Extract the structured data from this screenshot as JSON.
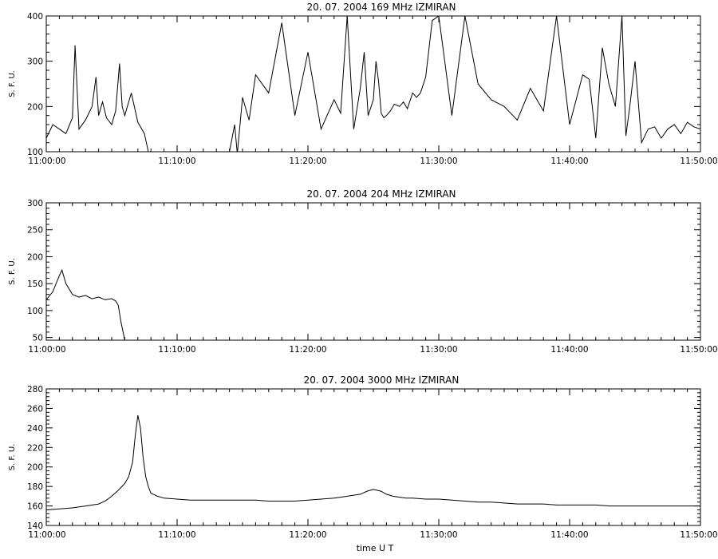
{
  "figure": {
    "xlabel": "time  U T",
    "colors": {
      "line": "#000000",
      "axes": "#000000",
      "background": "#ffffff"
    }
  },
  "chart_data": [
    {
      "type": "line",
      "title": "20.  07.  2004    169 MHz    IZMIRAN",
      "ylabel": "S. F. U.",
      "x_ticks": [
        "11:00:00",
        "11:10:00",
        "11:20:00",
        "11:30:00",
        "11:40:00",
        "11:50:00"
      ],
      "y_ticks": [
        "100",
        "200",
        "300",
        "400"
      ],
      "xlim": [
        "11:00:00",
        "11:50:00"
      ],
      "ylim": [
        100,
        400
      ],
      "grid": false,
      "series": [
        {
          "x_minutes_after_11": [
            0,
            0.5,
            1,
            1.5,
            2,
            2.2,
            2.5,
            3,
            3.5,
            3.8,
            4,
            4.3,
            4.6,
            5,
            5.3,
            5.6,
            5.8,
            6,
            6.5,
            7,
            7.5,
            7.8,
            8,
            8.3,
            8.6,
            9,
            9.2,
            9.5,
            9.8,
            10,
            10.2,
            10.5,
            10.8,
            11,
            11.3,
            11.6,
            12,
            12.2,
            12.5,
            12.8,
            13,
            13.3,
            13.6,
            14,
            14.4,
            14.6,
            15,
            15.5,
            16,
            17,
            18,
            19,
            20,
            21,
            22,
            22.5,
            23,
            23.5,
            24,
            24.3,
            24.6,
            25,
            25.2,
            25.4,
            25.6,
            25.8,
            26,
            26.3,
            26.6,
            27,
            27.3,
            27.6,
            28,
            28.3,
            28.6,
            29,
            29.5,
            30,
            31,
            32,
            33,
            34,
            35,
            36,
            37,
            38,
            39,
            40,
            41,
            41.5,
            42,
            42.5,
            43,
            43.5,
            44,
            44.3,
            44.6,
            45,
            45.5,
            46,
            46.5,
            47,
            47.5,
            48,
            48.5,
            49,
            49.5,
            50
          ],
          "y": [
            130,
            160,
            150,
            140,
            175,
            335,
            150,
            170,
            200,
            265,
            180,
            210,
            175,
            160,
            190,
            295,
            200,
            180,
            230,
            165,
            140,
            100,
            100,
            100,
            100,
            100,
            100,
            100,
            100,
            100,
            100,
            100,
            100,
            100,
            100,
            100,
            100,
            100,
            100,
            100,
            100,
            100,
            100,
            100,
            160,
            95,
            220,
            170,
            270,
            230,
            385,
            180,
            320,
            150,
            215,
            185,
            400,
            150,
            240,
            320,
            180,
            215,
            300,
            255,
            185,
            175,
            180,
            190,
            205,
            200,
            210,
            195,
            230,
            220,
            230,
            265,
            390,
            400,
            180,
            400,
            250,
            215,
            200,
            170,
            240,
            190,
            400,
            160,
            270,
            260,
            130,
            330,
            250,
            200,
            400,
            135,
            200,
            300,
            120,
            150,
            155,
            130,
            150,
            160,
            140,
            165,
            155,
            150
          ]
        }
      ]
    },
    {
      "type": "line",
      "title": "20.  07.  2004    204 MHz    IZMIRAN",
      "ylabel": "S. F. U.",
      "x_ticks": [
        "11:00:00",
        "11:10:00",
        "11:20:00",
        "11:30:00",
        "11:40:00",
        "11:50:00"
      ],
      "y_ticks": [
        "50",
        "100",
        "150",
        "200",
        "250",
        "300"
      ],
      "xlim": [
        "11:00:00",
        "11:50:00"
      ],
      "ylim": [
        45,
        300
      ],
      "grid": false,
      "series": [
        {
          "x_minutes_after_11": [
            0,
            0.5,
            1,
            1.2,
            1.5,
            2,
            2.5,
            3,
            3.5,
            4,
            4.5,
            5,
            5.3,
            5.5,
            5.7,
            6,
            6.5,
            7,
            7.5,
            7.8,
            8,
            8.5,
            9,
            9.5,
            10,
            10.5,
            11,
            11.3,
            11.6,
            12,
            12.2,
            12.5,
            12.8,
            13,
            13.3,
            13.6,
            14,
            14.3,
            14.6,
            15,
            15.5,
            16,
            17,
            18,
            19,
            20,
            21,
            22,
            23,
            24,
            24.3,
            24.6,
            25,
            25.2,
            25.4,
            25.6,
            25.8,
            26,
            26.5,
            27,
            27.2,
            27.4,
            27.6,
            27.8,
            28,
            28.5,
            29,
            29.5,
            30,
            31,
            32,
            33,
            34,
            35,
            36,
            37,
            38,
            39,
            40,
            41,
            42,
            43,
            44,
            45,
            46,
            47,
            48,
            49,
            49.5,
            50
          ],
          "y": [
            120,
            135,
            165,
            175,
            150,
            130,
            125,
            128,
            122,
            125,
            120,
            122,
            118,
            110,
            80,
            45,
            45,
            45,
            45,
            45,
            45,
            45,
            45,
            45,
            45,
            45,
            45,
            45,
            45,
            45,
            45,
            45,
            45,
            45,
            45,
            45,
            45,
            45,
            45,
            45,
            45,
            45,
            45,
            45,
            45,
            45,
            45,
            45,
            45,
            45,
            45,
            45,
            45,
            45,
            45,
            45,
            45,
            45,
            45,
            45,
            45,
            45,
            45,
            45,
            45,
            45,
            45,
            45,
            45,
            45,
            45,
            45,
            45,
            45,
            45,
            45,
            45,
            45,
            45,
            45,
            45,
            45,
            45,
            45,
            45,
            45,
            45,
            45,
            45,
            45
          ]
        }
      ]
    },
    {
      "type": "line",
      "title": "20.  07.  2004     3000 MHz     IZMIRAN",
      "ylabel": "S. F. U.",
      "x_ticks": [
        "11:00:00",
        "11:10:00",
        "11:20:00",
        "11:30:00",
        "11:40:00",
        "11:50:00"
      ],
      "y_ticks": [
        "140",
        "160",
        "180",
        "200",
        "220",
        "240",
        "260",
        "280"
      ],
      "xlim": [
        "11:00:00",
        "11:50:00"
      ],
      "ylim": [
        140,
        280
      ],
      "grid": false,
      "series": [
        {
          "x_minutes_after_11": [
            0,
            1,
            2,
            3,
            4,
            4.5,
            5,
            5.5,
            6,
            6.3,
            6.6,
            6.8,
            7,
            7.2,
            7.4,
            7.6,
            7.8,
            8,
            8.5,
            9,
            10,
            11,
            12,
            13,
            14,
            15,
            16,
            17,
            18,
            19,
            20,
            21,
            22,
            22.5,
            23,
            23.5,
            24,
            24.5,
            25,
            25.3,
            25.6,
            26,
            26.5,
            27,
            27.5,
            28,
            29,
            30,
            31,
            32,
            33,
            34,
            35,
            36,
            37,
            38,
            39,
            40,
            41,
            42,
            43,
            44,
            45,
            46,
            47,
            48,
            49,
            50
          ],
          "y": [
            156,
            157,
            158,
            160,
            162,
            165,
            170,
            176,
            183,
            190,
            205,
            232,
            253,
            240,
            210,
            190,
            180,
            173,
            170,
            168,
            167,
            166,
            166,
            166,
            166,
            166,
            166,
            165,
            165,
            165,
            166,
            167,
            168,
            169,
            170,
            171,
            172,
            175,
            177,
            176,
            175,
            172,
            170,
            169,
            168,
            168,
            167,
            167,
            166,
            165,
            164,
            164,
            163,
            162,
            162,
            162,
            161,
            161,
            161,
            161,
            160,
            160,
            160,
            160,
            160,
            160,
            160,
            160
          ]
        }
      ]
    }
  ]
}
